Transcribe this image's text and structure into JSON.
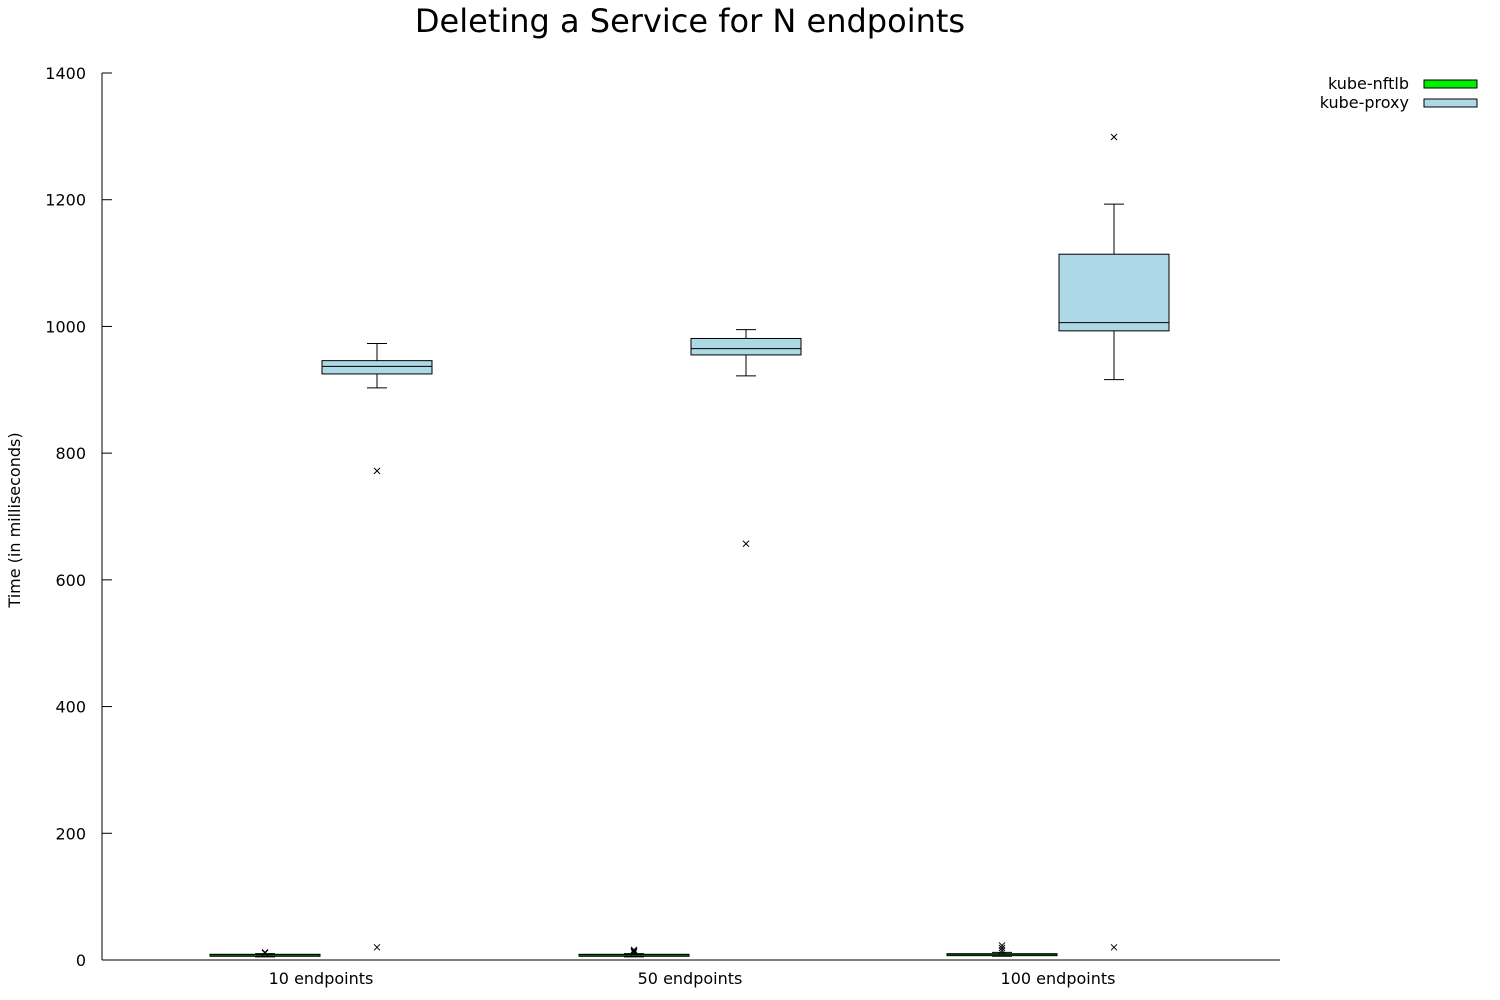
{
  "chart_data": {
    "type": "box",
    "title": "Deleting a Service for N endpoints",
    "xlabel": "",
    "ylabel": "Time (in milliseconds)",
    "ylim": [
      0,
      1400
    ],
    "yticks": [
      0,
      200,
      400,
      600,
      800,
      1000,
      1200,
      1400
    ],
    "categories": [
      "10 endpoints",
      "50 endpoints",
      "100 endpoints"
    ],
    "legend_position": "top-right",
    "grid": false,
    "series": [
      {
        "name": "kube-nftlb",
        "color": "#00ee00",
        "boxes": [
          {
            "min": 5,
            "q1": 7,
            "median": 8,
            "q3": 9,
            "max": 10,
            "outliers": [
              11,
              12
            ]
          },
          {
            "min": 5,
            "q1": 7,
            "median": 8,
            "q3": 9,
            "max": 10,
            "outliers": [
              12,
              14,
              16
            ]
          },
          {
            "min": 6,
            "q1": 8,
            "median": 9,
            "q3": 10,
            "max": 12,
            "outliers": [
              15,
              19,
              23
            ]
          }
        ]
      },
      {
        "name": "kube-proxy",
        "color": "#add8e6",
        "boxes": [
          {
            "min": 903,
            "q1": 925,
            "median": 937,
            "q3": 946,
            "max": 973,
            "outliers": [
              772,
              20
            ]
          },
          {
            "min": 922,
            "q1": 955,
            "median": 965,
            "q3": 981,
            "max": 995,
            "outliers": [
              657
            ]
          },
          {
            "min": 916,
            "q1": 993,
            "median": 1006,
            "q3": 1114,
            "max": 1193,
            "outliers": [
              1299,
              20
            ]
          }
        ]
      }
    ]
  }
}
